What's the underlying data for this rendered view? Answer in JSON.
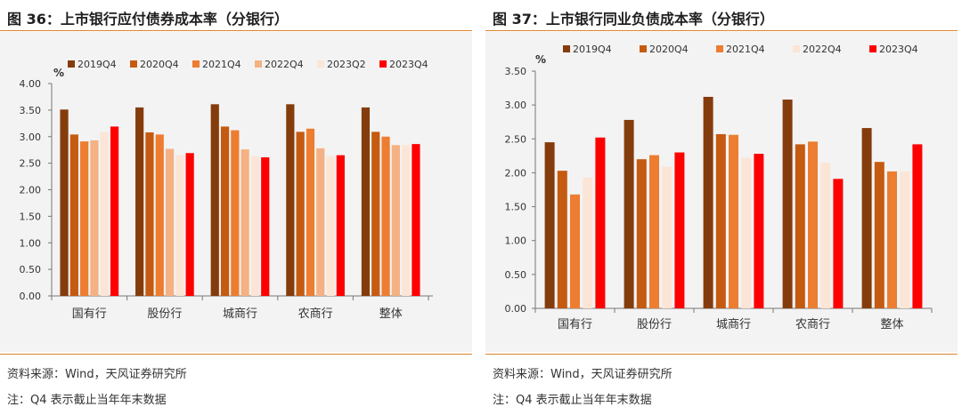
{
  "left_panel": {
    "title": "图 36：上市银行应付债券成本率（分银行）",
    "source": "资料来源：Wind，天风证券研究所",
    "footnote": "注：Q4 表示截止当年年末数据"
  },
  "right_panel": {
    "title": "图 37：上市银行同业负债成本率（分银行）",
    "source": "资料来源：Wind，天风证券研究所",
    "footnote": "注：Q4 表示截止当年年末数据"
  },
  "chart_data": [
    {
      "type": "bar",
      "title": "图 36：上市银行应付债券成本率（分银行）",
      "ylabel": "%",
      "ylim": [
        0,
        4.0
      ],
      "yticks": [
        "0.00",
        "0.50",
        "1.00",
        "1.50",
        "2.00",
        "2.50",
        "3.00",
        "3.50",
        "4.00"
      ],
      "categories": [
        "国有行",
        "股份行",
        "城商行",
        "农商行",
        "整体"
      ],
      "legend_position": "top",
      "grid": false,
      "series": [
        {
          "name": "2019Q4",
          "color": "#843c0c",
          "values": [
            3.51,
            3.55,
            3.61,
            3.61,
            3.55
          ]
        },
        {
          "name": "2020Q4",
          "color": "#c55a11",
          "values": [
            3.04,
            3.08,
            3.19,
            3.09,
            3.09
          ]
        },
        {
          "name": "2021Q4",
          "color": "#ed7d31",
          "values": [
            2.91,
            3.04,
            3.12,
            3.15,
            3.0
          ]
        },
        {
          "name": "2022Q4",
          "color": "#f4b183",
          "values": [
            2.93,
            2.77,
            2.76,
            2.78,
            2.84
          ]
        },
        {
          "name": "2023Q2",
          "color": "#fbe5d6",
          "values": [
            3.08,
            2.65,
            2.63,
            2.63,
            2.84
          ]
        },
        {
          "name": "2023Q4",
          "color": "#ff0000",
          "values": [
            3.19,
            2.69,
            2.61,
            2.65,
            2.86
          ]
        }
      ]
    },
    {
      "type": "bar",
      "title": "图 37：上市银行同业负债成本率（分银行）",
      "ylabel": "%",
      "ylim": [
        0,
        3.5
      ],
      "yticks": [
        "0.00",
        "0.50",
        "1.00",
        "1.50",
        "2.00",
        "2.50",
        "3.00",
        "3.50"
      ],
      "categories": [
        "国有行",
        "股份行",
        "城商行",
        "农商行",
        "整体"
      ],
      "legend_position": "top",
      "grid": false,
      "series": [
        {
          "name": "2019Q4",
          "color": "#843c0c",
          "values": [
            2.45,
            2.78,
            3.12,
            3.08,
            2.66
          ]
        },
        {
          "name": "2020Q4",
          "color": "#c55a11",
          "values": [
            2.03,
            2.2,
            2.57,
            2.42,
            2.16
          ]
        },
        {
          "name": "2021Q4",
          "color": "#ed7d31",
          "values": [
            1.68,
            2.26,
            2.56,
            2.46,
            2.02
          ]
        },
        {
          "name": "2022Q4",
          "color": "#fbe5d6",
          "values": [
            1.93,
            2.09,
            2.22,
            2.15,
            2.02
          ]
        },
        {
          "name": "2023Q4",
          "color": "#ff0000",
          "values": [
            2.52,
            2.3,
            2.28,
            1.91,
            2.42
          ]
        }
      ]
    }
  ]
}
